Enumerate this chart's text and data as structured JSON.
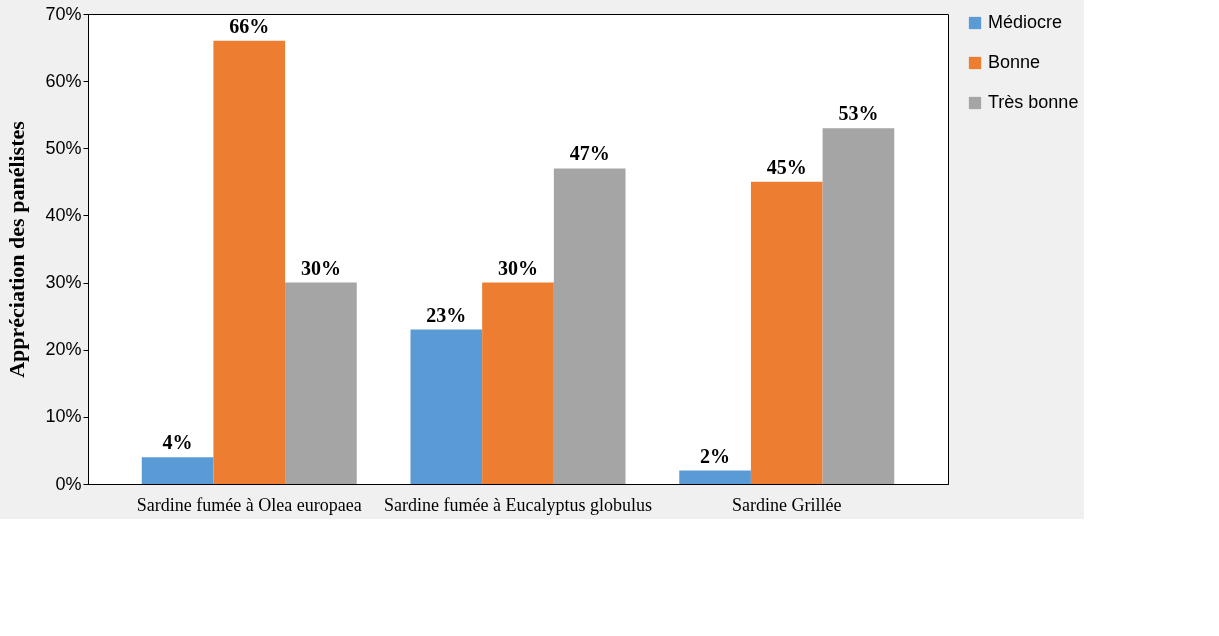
{
  "chart_data": {
    "type": "bar",
    "ylabel": "Appréciation des panélistes",
    "categories": [
      "Sardine fumée à Olea europaea",
      "Sardine fumée à Eucalyptus globulus",
      "Sardine Grillée"
    ],
    "series": [
      {
        "name": "Médiocre",
        "color": "#5b9bd5",
        "values": [
          4,
          23,
          2
        ],
        "value_labels": [
          "4%",
          "23%",
          "2%"
        ]
      },
      {
        "name": "Bonne",
        "color": "#ed7d31",
        "values": [
          66,
          30,
          45
        ],
        "value_labels": [
          "66%",
          "30%",
          "45%"
        ]
      },
      {
        "name": "Très bonne",
        "color": "#a5a5a5",
        "values": [
          30,
          47,
          53
        ],
        "value_labels": [
          "30%",
          "47%",
          "53%"
        ]
      }
    ],
    "ylim": [
      0,
      70
    ],
    "yticks": [
      {
        "value": 0,
        "label": "0%"
      },
      {
        "value": 10,
        "label": "10%"
      },
      {
        "value": 20,
        "label": "20%"
      },
      {
        "value": 30,
        "label": "30%"
      },
      {
        "value": 40,
        "label": "40%"
      },
      {
        "value": 50,
        "label": "50%"
      },
      {
        "value": 60,
        "label": "60%"
      },
      {
        "value": 70,
        "label": "70%"
      }
    ],
    "grid": false,
    "legend": "top right"
  }
}
